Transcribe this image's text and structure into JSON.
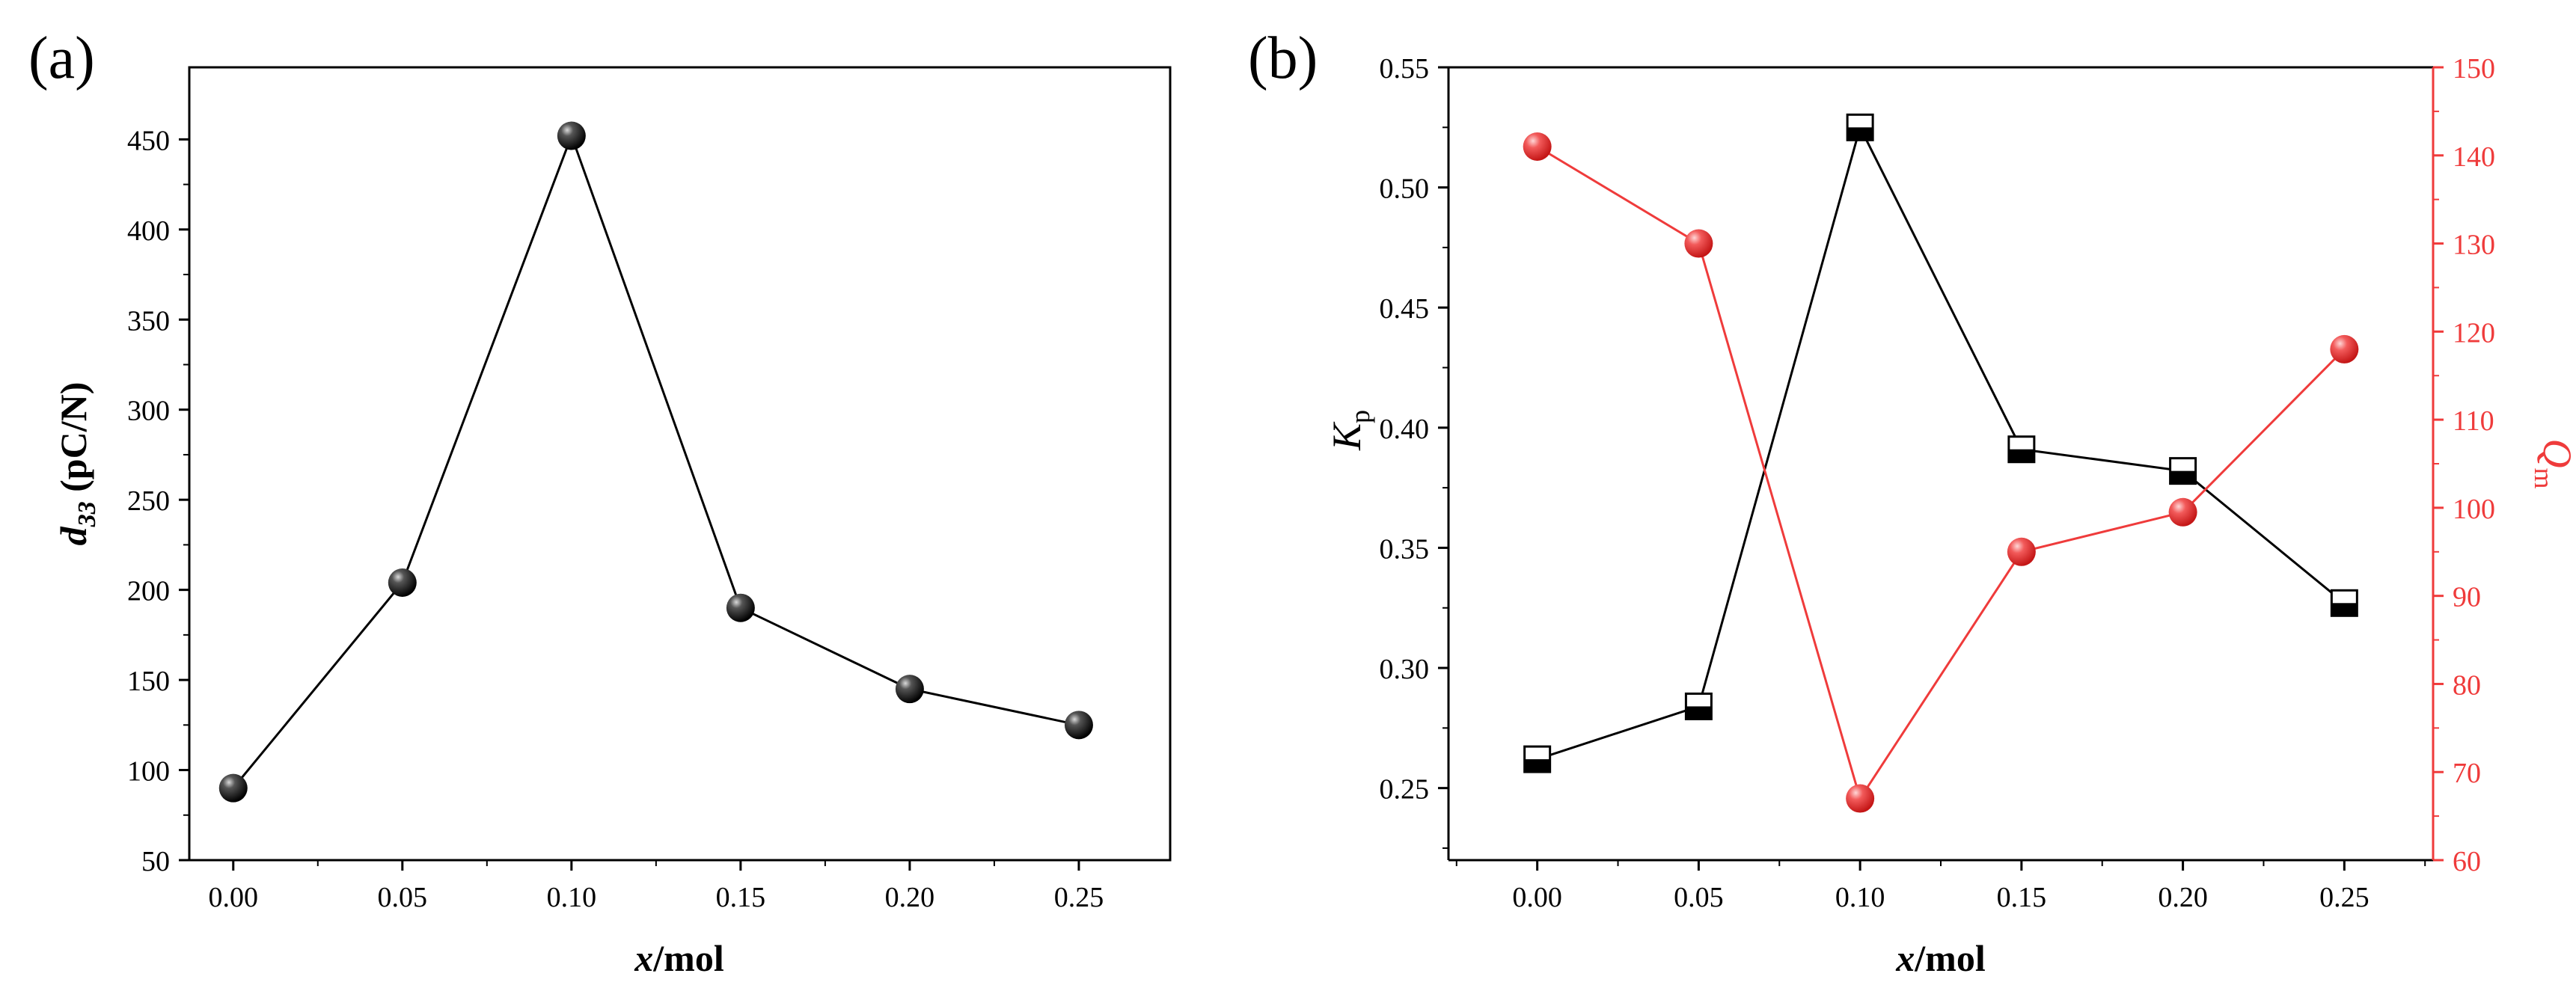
{
  "panel_a": {
    "label": "(a)"
  },
  "panel_b": {
    "label": "(b)"
  },
  "colors": {
    "black": "#000000",
    "red": "#ef3b3b"
  },
  "chart_data": [
    {
      "id": "a",
      "type": "line",
      "title": "",
      "x": [
        0.0,
        0.05,
        0.1,
        0.15,
        0.2,
        0.25
      ],
      "x_ticks": [
        "0.00",
        "0.05",
        "0.10",
        "0.15",
        "0.20",
        "0.25"
      ],
      "xlabel": {
        "italic": "x",
        "rest": "/mol"
      },
      "ylabel": {
        "base": "d",
        "sub": "33",
        "rest": " (pC/N)"
      },
      "xlim": [
        -0.013,
        0.277
      ],
      "ylim": [
        50,
        490
      ],
      "y_ticks": [
        50,
        100,
        150,
        200,
        250,
        300,
        350,
        400,
        450
      ],
      "grid": false,
      "series": [
        {
          "values": [
            90,
            204,
            452,
            190,
            145,
            125
          ],
          "marker": "sphere",
          "color": "#000000"
        }
      ]
    },
    {
      "id": "b",
      "type": "line",
      "title": "",
      "x": [
        0.0,
        0.05,
        0.1,
        0.15,
        0.2,
        0.25
      ],
      "x_ticks": [
        "0.00",
        "0.05",
        "0.10",
        "0.15",
        "0.20",
        "0.25"
      ],
      "xlabel": {
        "italic": "x",
        "rest": "/mol"
      },
      "xlim": [
        -0.0275,
        0.2775
      ],
      "grid": false,
      "left_axis": {
        "label": {
          "base": "K",
          "sub": "p"
        },
        "ylim": [
          0.22,
          0.55
        ],
        "ticks": [
          "0.25",
          "0.30",
          "0.35",
          "0.40",
          "0.45",
          "0.50",
          "0.55"
        ],
        "color": "#000000"
      },
      "right_axis": {
        "label": {
          "base": "Q",
          "sub": "m"
        },
        "ylim": [
          60,
          150
        ],
        "ticks": [
          "60",
          "70",
          "80",
          "90",
          "100",
          "110",
          "120",
          "130",
          "140",
          "150"
        ],
        "color": "#ef3b3b"
      },
      "series": [
        {
          "axis": "left",
          "values": [
            0.262,
            0.284,
            0.525,
            0.391,
            0.382,
            0.327
          ],
          "marker": "half-filled-square",
          "color": "#000000"
        },
        {
          "axis": "right",
          "values": [
            141,
            130,
            67,
            95,
            99.5,
            118
          ],
          "marker": "sphere",
          "color": "#ef3b3b"
        }
      ]
    }
  ]
}
